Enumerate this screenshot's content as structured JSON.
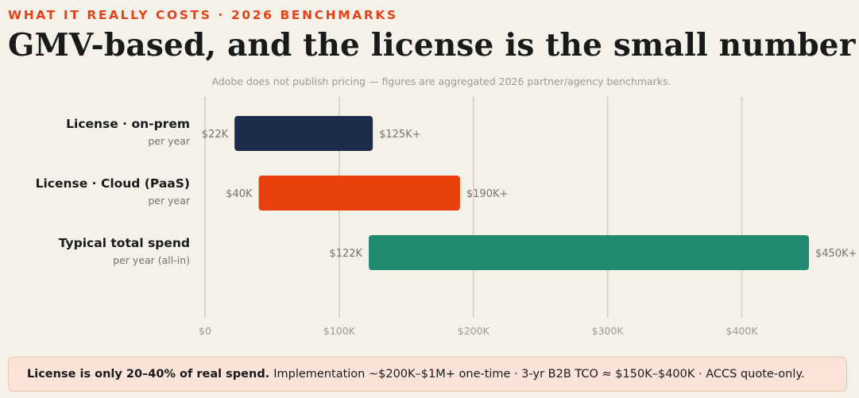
{
  "header": {
    "eyebrow": "WHAT IT REALLY COSTS · 2026 BENCHMARKS",
    "title": "GMV-based, and the license is the small number",
    "note": "Adobe does not publish pricing — figures are aggregated 2026 partner/agency benchmarks."
  },
  "rows": [
    {
      "label": "License · on-prem",
      "sublabel": "per year"
    },
    {
      "label": "License · Cloud (PaaS)",
      "sublabel": "per year"
    },
    {
      "label": "Typical total spend",
      "sublabel": "per year (all-in)"
    }
  ],
  "chart_data": {
    "type": "bar",
    "orientation": "horizontal-range",
    "categories": [
      "License · on-prem",
      "License · Cloud (PaaS)",
      "Typical total spend"
    ],
    "ranges": [
      {
        "low": 22000,
        "high": 125000,
        "low_label": "$22K",
        "high_label": "$125K+",
        "color": "#1d2a4a"
      },
      {
        "low": 40000,
        "high": 190000,
        "low_label": "$40K",
        "high_label": "$190K+",
        "color": "#e8400c"
      },
      {
        "low": 122000,
        "high": 450000,
        "low_label": "$122K",
        "high_label": "$450K+",
        "color": "#208b70"
      }
    ],
    "xlim": [
      0,
      450000
    ],
    "xticks": [
      0,
      100000,
      200000,
      300000,
      400000
    ],
    "xtick_labels": [
      "$0",
      "$100K",
      "$200K",
      "$300K",
      "$400K"
    ],
    "grid": true
  },
  "footer": {
    "bold": "License is only 20–40% of real spend.",
    "text": "Implementation ~$200K–$1M+ one-time · 3-yr B2B TCO ≈ $150K–$400K · ACCS quote-only."
  }
}
